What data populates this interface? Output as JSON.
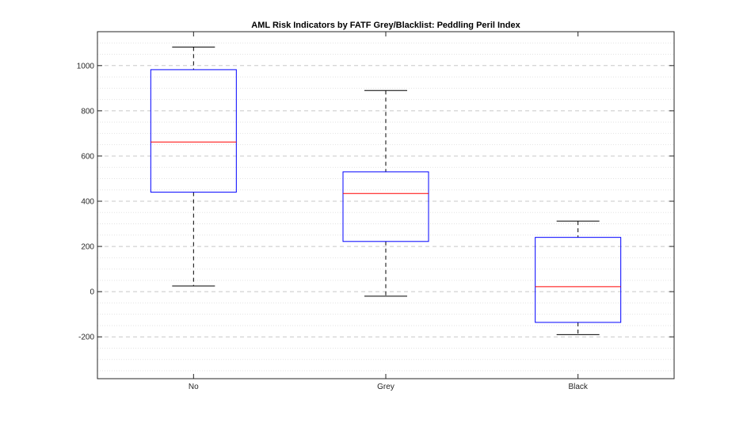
{
  "chart_data": {
    "type": "boxplot",
    "title": "AML Risk Indicators by FATF Grey/Blacklist: Peddling Peril Index",
    "xlabel": "",
    "ylabel": "",
    "categories": [
      "No",
      "Grey",
      "Black"
    ],
    "boxes": [
      {
        "category": "No",
        "whisker_low": 25,
        "q1": 440,
        "median": 662,
        "q3": 982,
        "whisker_high": 1082
      },
      {
        "category": "Grey",
        "whisker_low": -20,
        "q1": 222,
        "median": 434,
        "q3": 530,
        "whisker_high": 890
      },
      {
        "category": "Black",
        "whisker_low": -190,
        "q1": -136,
        "median": 22,
        "q3": 240,
        "whisker_high": 312
      }
    ],
    "ylim": [
      -385,
      1150
    ],
    "yticks": [
      -200,
      0,
      200,
      400,
      600,
      800,
      1000
    ],
    "grid": true,
    "colors": {
      "box": "#0000ff",
      "median": "#ff0000",
      "whisker": "#000000"
    }
  }
}
